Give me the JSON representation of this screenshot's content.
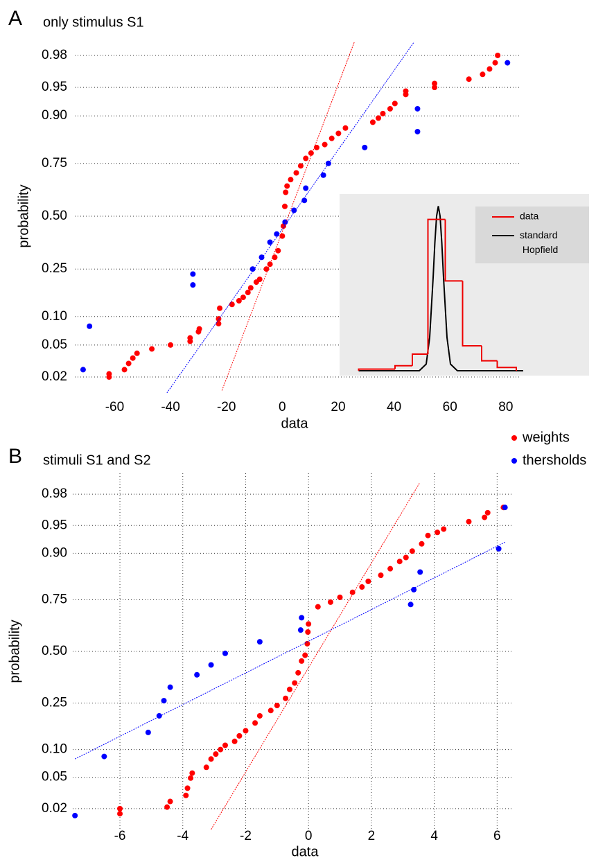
{
  "chart_data": [
    {
      "type": "scatter",
      "panel_label": "A",
      "title": "only stimulus S1",
      "xlabel": "data",
      "ylabel": "probability",
      "yscale": "probability",
      "xlim": [
        -75,
        85
      ],
      "ylim": [
        0.012,
        0.988
      ],
      "xticks": [
        -60,
        -40,
        -20,
        0,
        20,
        40,
        60,
        80
      ],
      "yticks": [
        0.02,
        0.05,
        {
          "value": 0.1,
          "label": "0.10"
        },
        0.25,
        {
          "value": 0.5,
          "label": "0.50"
        },
        0.75,
        {
          "value": 0.9,
          "label": "0.90"
        },
        0.95,
        0.98
      ],
      "xgrid": false,
      "ygrid": true,
      "legend": "right",
      "series": [
        {
          "name": "weights",
          "color": "#ff0000",
          "x": [
            -62,
            -62,
            -56.5,
            -55,
            -53.5,
            -52,
            -46.7,
            -40,
            -33,
            -33,
            -30,
            -29.7,
            -22.8,
            -22.8,
            -22.4,
            -18,
            -15.5,
            -14,
            -12.3,
            -11.3,
            -9.3,
            -8.1,
            -5.7,
            -4.4,
            -2.7,
            -1.5,
            0,
            0.4,
            0.9,
            1.2,
            1.7,
            3,
            5,
            6.6,
            8.4,
            10.3,
            12.3,
            15.2,
            17.7,
            20.1,
            22.6,
            32.4,
            34.4,
            36,
            38.6,
            40.3,
            44.2,
            44.2,
            54.5,
            54.5,
            66.8,
            71.7,
            74.2,
            76.2,
            77.1
          ],
          "values": [
            0.022,
            0.02,
            0.025,
            0.03,
            0.035,
            0.04,
            0.045,
            0.05,
            0.055,
            0.06,
            0.07,
            0.075,
            0.085,
            0.095,
            0.12,
            0.13,
            0.14,
            0.15,
            0.165,
            0.18,
            0.2,
            0.21,
            0.25,
            0.27,
            0.3,
            0.33,
            0.4,
            0.45,
            0.55,
            0.62,
            0.65,
            0.68,
            0.71,
            0.74,
            0.77,
            0.79,
            0.81,
            0.82,
            0.84,
            0.855,
            0.87,
            0.885,
            0.895,
            0.905,
            0.915,
            0.925,
            0.94,
            0.945,
            0.95,
            0.955,
            0.96,
            0.965,
            0.97,
            0.975,
            0.98
          ]
        },
        {
          "name": "thersholds",
          "color": "#0000ff",
          "x": [
            -71.3,
            -69,
            -32,
            -32,
            -10.6,
            -7.4,
            -4.4,
            -2,
            1,
            4.2,
            7.9,
            8.4,
            14.7,
            16.5,
            29.5,
            48.4,
            48.4,
            80.6
          ],
          "values": [
            0.025,
            0.08,
            0.19,
            0.23,
            0.25,
            0.3,
            0.37,
            0.41,
            0.47,
            0.53,
            0.58,
            0.64,
            0.7,
            0.75,
            0.81,
            0.86,
            0.915,
            0.975
          ]
        }
      ],
      "fit_lines": [
        {
          "color": "#ff0000",
          "x": [
            -21.6,
            25.8
          ],
          "values": [
            0.013,
            0.987
          ]
        },
        {
          "color": "#0000ff",
          "x": [
            -41.3,
            47.2
          ],
          "values": [
            0.012,
            0.987
          ]
        }
      ]
    },
    {
      "type": "histogram",
      "name": "data",
      "color": "#ee0000",
      "bins": [
        5,
        26,
        36,
        45,
        55,
        65,
        76,
        85,
        96
      ],
      "values": [
        0.01,
        0.03,
        0.1,
        0.91,
        0.54,
        0.15,
        0.06,
        0.02
      ],
      "curve": {
        "name": "standard Hopfield",
        "color": "#000000",
        "x": [
          5,
          40,
          44,
          46,
          48,
          49,
          50,
          51,
          52,
          53,
          54,
          56,
          58,
          62,
          100
        ],
        "values": [
          0,
          0,
          0.04,
          0.2,
          0.56,
          0.77,
          0.93,
          0.99,
          0.93,
          0.77,
          0.56,
          0.2,
          0.04,
          0,
          0
        ]
      },
      "xlim": [
        0,
        100
      ],
      "ylim": [
        0,
        1
      ],
      "legend": "top-right"
    },
    {
      "type": "scatter",
      "panel_label": "B",
      "title": "stimuli S1 and S2",
      "xlabel": "data",
      "ylabel": "probability",
      "yscale": "probability",
      "xlim": [
        -7.5,
        6.5
      ],
      "ylim": [
        0.01,
        0.99
      ],
      "xticks": [
        -6,
        -4,
        -2,
        0,
        2,
        4,
        6
      ],
      "yticks": [
        0.02,
        0.05,
        {
          "value": 0.1,
          "label": "0.10"
        },
        0.25,
        {
          "value": 0.5,
          "label": "0.50"
        },
        0.75,
        {
          "value": 0.9,
          "label": "0.90"
        },
        0.95,
        0.98
      ],
      "xgrid": true,
      "ygrid": true,
      "series": [
        {
          "color": "#ff0000",
          "x": [
            -6,
            -6,
            -4.5,
            -4.4,
            -3.9,
            -3.85,
            -3.75,
            -3.7,
            -3.25,
            -3.1,
            -2.95,
            -2.8,
            -2.65,
            -2.35,
            -2.2,
            -2,
            -1.7,
            -1.55,
            -1.2,
            -1,
            -0.73,
            -0.6,
            -0.44,
            -0.33,
            -0.22,
            -0.11,
            -0.04,
            -0.02,
            0,
            0.3,
            0.7,
            1,
            1.4,
            1.7,
            1.9,
            2.3,
            2.6,
            2.9,
            3.1,
            3.3,
            3.6,
            3.8,
            4.1,
            4.3,
            5.1,
            5.6,
            5.7,
            6.2
          ],
          "values": [
            0.02,
            0.017,
            0.021,
            0.025,
            0.03,
            0.037,
            0.049,
            0.056,
            0.065,
            0.08,
            0.09,
            0.1,
            0.11,
            0.12,
            0.135,
            0.15,
            0.175,
            0.2,
            0.22,
            0.24,
            0.27,
            0.31,
            0.34,
            0.39,
            0.45,
            0.48,
            0.54,
            0.6,
            0.64,
            0.72,
            0.74,
            0.76,
            0.78,
            0.8,
            0.82,
            0.84,
            0.86,
            0.88,
            0.89,
            0.905,
            0.92,
            0.935,
            0.94,
            0.945,
            0.955,
            0.96,
            0.965,
            0.97
          ]
        },
        {
          "color": "#0000ff",
          "x": [
            -7.43,
            -6.5,
            -5.1,
            -4.75,
            -4.6,
            -4.4,
            -3.55,
            -3.1,
            -2.65,
            -1.55,
            -0.25,
            -0.22,
            3.25,
            3.35,
            3.55,
            6.05,
            6.25
          ],
          "values": [
            0.016,
            0.085,
            0.145,
            0.2,
            0.26,
            0.32,
            0.38,
            0.43,
            0.49,
            0.55,
            0.61,
            0.67,
            0.73,
            0.79,
            0.85,
            0.91,
            0.97
          ]
        }
      ],
      "fit_lines": [
        {
          "color": "#ff0000",
          "x": [
            -3.1,
            3.53
          ],
          "values": [
            0.01,
            0.986
          ]
        },
        {
          "color": "#0000ff",
          "x": [
            -7.43,
            6.28
          ],
          "values": [
            0.08,
            0.924
          ]
        }
      ]
    }
  ]
}
